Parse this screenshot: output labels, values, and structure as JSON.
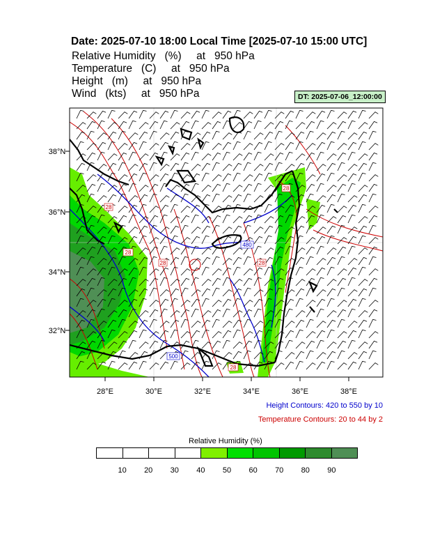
{
  "header": {
    "title": "Date: 2025-07-10  18:00 Local Time [2025-07-10  15:00 UTC]",
    "fields": [
      "Relative Humidity   (%)     at   950 hPa",
      "Temperature   (C)     at   950 hPa",
      "Height   (m)     at   950 hPa",
      "Wind   (kts)     at   950 hPa"
    ],
    "dt_badge": "DT: 2025-07-06_12:00:00"
  },
  "map": {
    "lat_labels": [
      "38°N",
      "36°N",
      "34°N",
      "32°N"
    ],
    "lon_labels": [
      "28°E",
      "30°E",
      "32°E",
      "34°E",
      "36°E",
      "38°E"
    ],
    "lon_range": [
      26.6,
      39.4
    ],
    "lat_range": [
      30.5,
      39.5
    ],
    "contour_labels": {
      "temperature": [
        "28",
        "28",
        "28",
        "28",
        "28",
        "28"
      ],
      "height": [
        "480",
        "500"
      ]
    },
    "colors": {
      "height_contour": "#0000cc",
      "temperature_contour": "#cc0000",
      "coastline": "#000000",
      "wind_barb": "#000000"
    }
  },
  "notes": {
    "height_contours": "Height Contours: 420 to 550 by 10",
    "temperature_contours": "Temperature Contours: 20 to 44 by 2"
  },
  "legend": {
    "title": "Relative Humidity  (%)",
    "ticks": [
      "10",
      "20",
      "30",
      "40",
      "50",
      "60",
      "70",
      "80",
      "90"
    ],
    "colors": [
      "#ffffff",
      "#ffffff",
      "#ffffff",
      "#ffffff",
      "#80f000",
      "#00e000",
      "#00c400",
      "#009a00",
      "#2e8b2e",
      "#4f8f55"
    ]
  }
}
